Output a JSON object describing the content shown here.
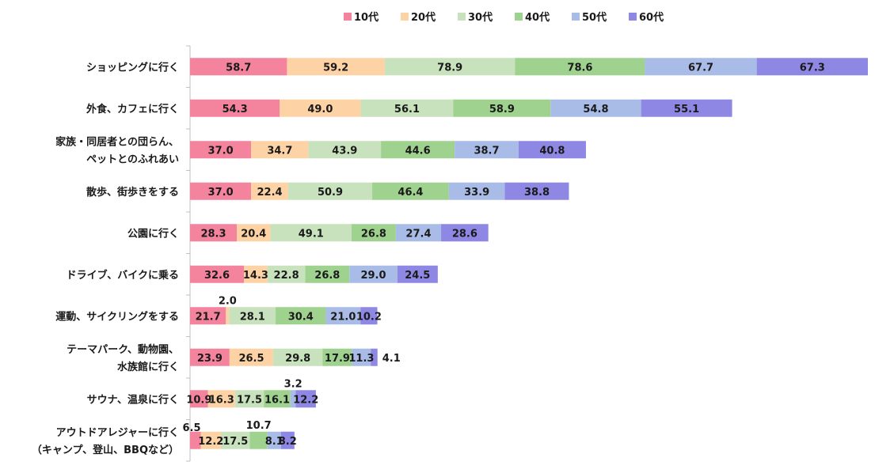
{
  "chart_data": {
    "type": "bar",
    "orientation": "horizontal",
    "stacked": true,
    "title": "",
    "xlabel": "",
    "ylabel": "",
    "grid": false,
    "legend": "top-center",
    "xlim": [
      0,
      435
    ],
    "categories": [
      [
        "ショッピングに行く"
      ],
      [
        "外食、カフェに行く"
      ],
      [
        "家族・同居者との団らん、",
        "ペットとのふれあい"
      ],
      [
        "散歩、街歩きをする"
      ],
      [
        "公園に行く"
      ],
      [
        "ドライブ、バイクに乗る"
      ],
      [
        "運動、サイクリングをする"
      ],
      [
        "テーマパーク、動物園、",
        "水族館に行く"
      ],
      [
        "サウナ、温泉に行く"
      ],
      [
        "アウトドアレジャーに行く",
        "（キャンプ、登山、BBQなど）"
      ]
    ],
    "series": [
      {
        "name": "10代",
        "color": "#f4839d",
        "values": [
          58.7,
          54.3,
          37.0,
          37.0,
          28.3,
          32.6,
          21.7,
          23.9,
          10.9,
          6.5
        ]
      },
      {
        "name": "20代",
        "color": "#fdd3a5",
        "values": [
          59.2,
          49.0,
          34.7,
          22.4,
          20.4,
          14.3,
          2.0,
          26.5,
          16.3,
          12.2
        ]
      },
      {
        "name": "30代",
        "color": "#c8e2bd",
        "values": [
          78.9,
          56.1,
          43.9,
          50.9,
          49.1,
          22.8,
          28.1,
          29.8,
          17.5,
          17.5
        ]
      },
      {
        "name": "40代",
        "color": "#9fd28f",
        "values": [
          78.6,
          58.9,
          44.6,
          46.4,
          26.8,
          26.8,
          30.4,
          17.9,
          16.1,
          10.7
        ]
      },
      {
        "name": "50代",
        "color": "#a9bce7",
        "values": [
          67.7,
          54.8,
          38.7,
          33.9,
          27.4,
          29.0,
          21.0,
          11.3,
          3.2,
          8.1
        ]
      },
      {
        "name": "60代",
        "color": "#8f87e4",
        "values": [
          67.3,
          55.1,
          40.8,
          38.8,
          28.6,
          24.5,
          10.2,
          4.1,
          12.2,
          8.2
        ]
      }
    ]
  }
}
